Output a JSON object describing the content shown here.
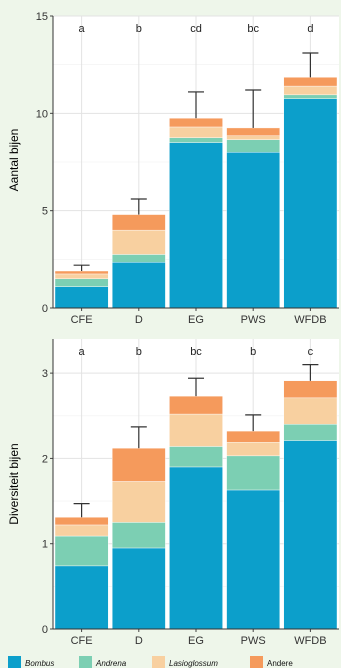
{
  "colors": {
    "Bombus": "#0c9fcb",
    "Andrena": "#7ccfb3",
    "Lasioglossum": "#f8d0a0",
    "Andere": "#f59a5c",
    "grid": "#e3e3e3",
    "panel": "#ffffff"
  },
  "legend": {
    "position": "bottom",
    "items": [
      "Bombus",
      "Andrena",
      "Lasioglossum",
      "Andere"
    ]
  },
  "chart_data": [
    {
      "type": "bar",
      "stacked": true,
      "ylabel": "Aantal bijen",
      "ylim": [
        0,
        15
      ],
      "yticks": [
        0,
        5,
        10,
        15
      ],
      "grid": true,
      "categories": [
        "CFE",
        "D",
        "EG",
        "PWS",
        "WFDB"
      ],
      "letters": [
        "a",
        "b",
        "cd",
        "bc",
        "d"
      ],
      "series": [
        {
          "name": "Bombus",
          "values": [
            1.1,
            2.35,
            8.5,
            8.0,
            10.75
          ]
        },
        {
          "name": "Andrena",
          "values": [
            0.4,
            0.4,
            0.25,
            0.65,
            0.2
          ]
        },
        {
          "name": "Lasioglossum",
          "values": [
            0.25,
            1.25,
            0.55,
            0.2,
            0.45
          ]
        },
        {
          "name": "Andere",
          "values": [
            0.15,
            0.8,
            0.45,
            0.4,
            0.45
          ]
        }
      ],
      "error_top": [
        2.2,
        5.6,
        11.1,
        11.2,
        13.1
      ]
    },
    {
      "type": "bar",
      "stacked": true,
      "ylabel": "Diversiteit bijen",
      "ylim": [
        0,
        3.4
      ],
      "yticks": [
        0,
        1,
        2,
        3
      ],
      "grid": true,
      "categories": [
        "CFE",
        "D",
        "EG",
        "PWS",
        "WFDB"
      ],
      "letters": [
        "a",
        "b",
        "bc",
        "b",
        "c"
      ],
      "series": [
        {
          "name": "Bombus",
          "values": [
            0.74,
            0.95,
            1.9,
            1.63,
            2.21
          ]
        },
        {
          "name": "Andrena",
          "values": [
            0.35,
            0.3,
            0.24,
            0.4,
            0.19
          ]
        },
        {
          "name": "Lasioglossum",
          "values": [
            0.13,
            0.48,
            0.38,
            0.16,
            0.31
          ]
        },
        {
          "name": "Andere",
          "values": [
            0.09,
            0.39,
            0.21,
            0.13,
            0.2
          ]
        }
      ],
      "error_top": [
        1.47,
        2.37,
        2.94,
        2.51,
        3.1
      ]
    }
  ]
}
